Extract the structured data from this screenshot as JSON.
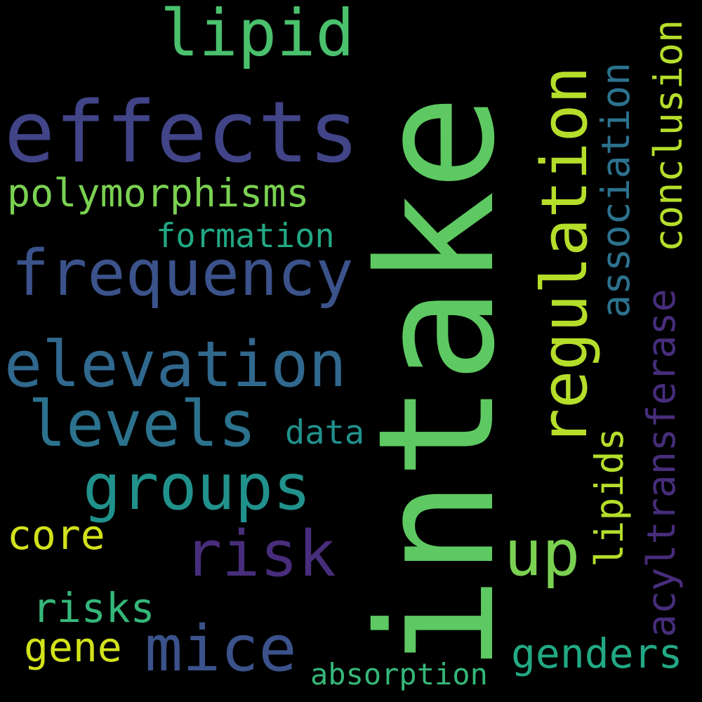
{
  "words": {
    "intake": "intake",
    "effects": "effects",
    "lipid": "lipid",
    "polymorphisms": "polymorphisms",
    "formation": "formation",
    "frequency": "frequency",
    "elevation": "elevation",
    "levels": "levels",
    "data": "data",
    "groups": "groups",
    "risk": "risk",
    "core": "core",
    "risks": "risks",
    "gene": "gene",
    "mice": "mice",
    "absorption": "absorption",
    "up": "up",
    "genders": "genders",
    "regulation": "regulation",
    "association": "association",
    "lipids": "lipids",
    "conclusion": "conclusion",
    "acyltransferase": "acyltransferase"
  },
  "colors": {
    "background": "#000000",
    "bright_green": "#5ec962",
    "light_green": "#7ad151",
    "yellow_green": "#b5de2b",
    "yellow": "#d2e21b",
    "mint": "#35b779",
    "teal_green": "#22a884",
    "teal": "#21918c",
    "blue_teal": "#2c728e",
    "steel_blue": "#31688e",
    "blue": "#3b528b",
    "indigo": "#414487",
    "purple": "#472d7b"
  }
}
